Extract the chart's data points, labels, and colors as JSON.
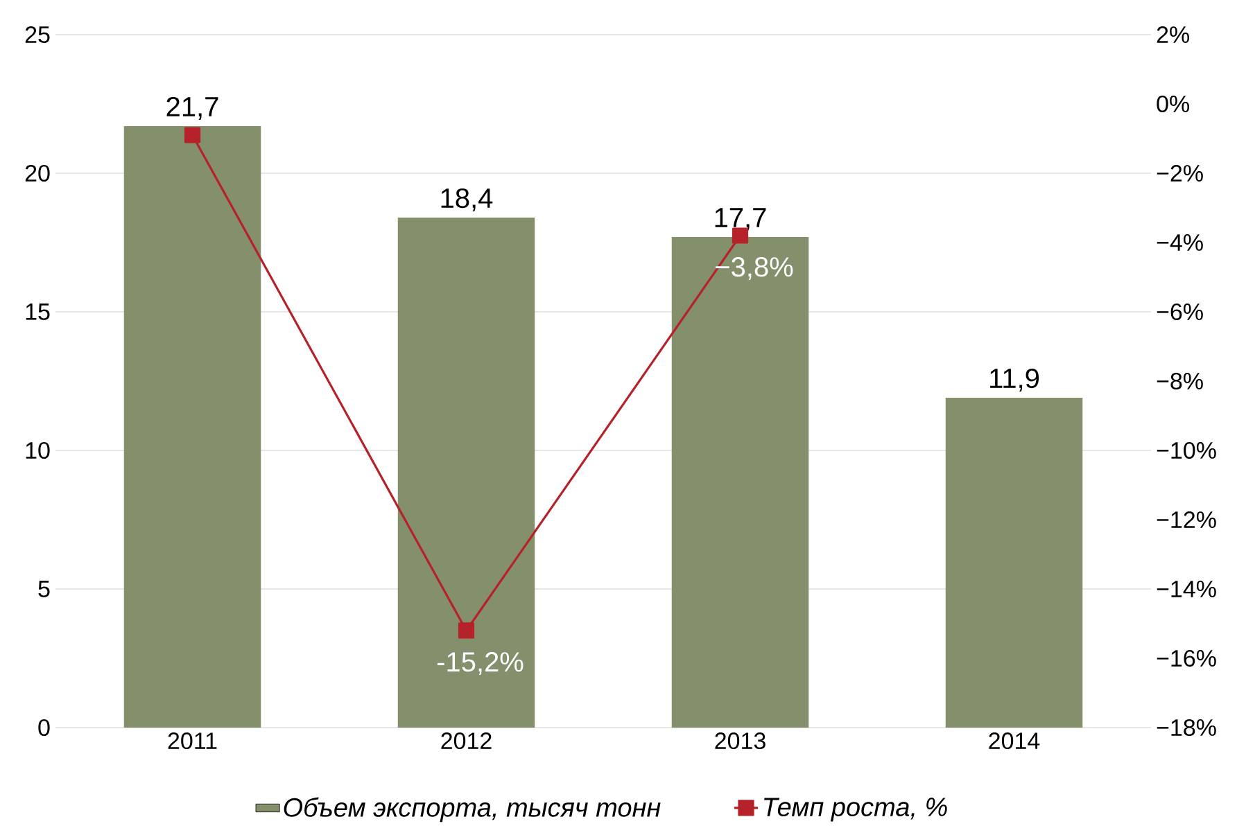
{
  "chart_data": {
    "type": "bar",
    "categories": [
      "2011",
      "2012",
      "2013",
      "2014"
    ],
    "series": [
      {
        "name": "Объем экспорта, тысяч тонн",
        "color": "#848f6b",
        "values": [
          21.7,
          18.4,
          17.7,
          11.9
        ],
        "value_labels": [
          "21,7",
          "18,4",
          "17,7",
          "11,9"
        ]
      },
      {
        "name": "Темп роста, %",
        "type": "line",
        "axis": "y2",
        "marker": "square",
        "color": "#b5222a",
        "values": [
          -0.9,
          -15.2,
          -3.8,
          null
        ],
        "value_labels": [
          null,
          "-15,2%",
          "−3,8%",
          null
        ]
      }
    ],
    "ylim": [
      0,
      25
    ],
    "yticks": [
      0,
      5,
      10,
      15,
      20,
      25
    ],
    "y2lim": [
      -18,
      2
    ],
    "y2ticks": [
      {
        "value": -18,
        "label": "−18%"
      },
      {
        "value": -16,
        "label": "−16%"
      },
      {
        "value": -14,
        "label": "−14%"
      },
      {
        "value": -12,
        "label": "−12%"
      },
      {
        "value": -10,
        "label": "−10%"
      },
      {
        "value": -8,
        "label": "−8%"
      },
      {
        "value": -6,
        "label": "−6%"
      },
      {
        "value": -4,
        "label": "−4%"
      },
      {
        "value": -2,
        "label": "−2%"
      },
      {
        "value": 0,
        "label": "0%"
      },
      {
        "value": 2,
        "label": "2%"
      }
    ],
    "grid": "y",
    "legend": "bottom"
  }
}
